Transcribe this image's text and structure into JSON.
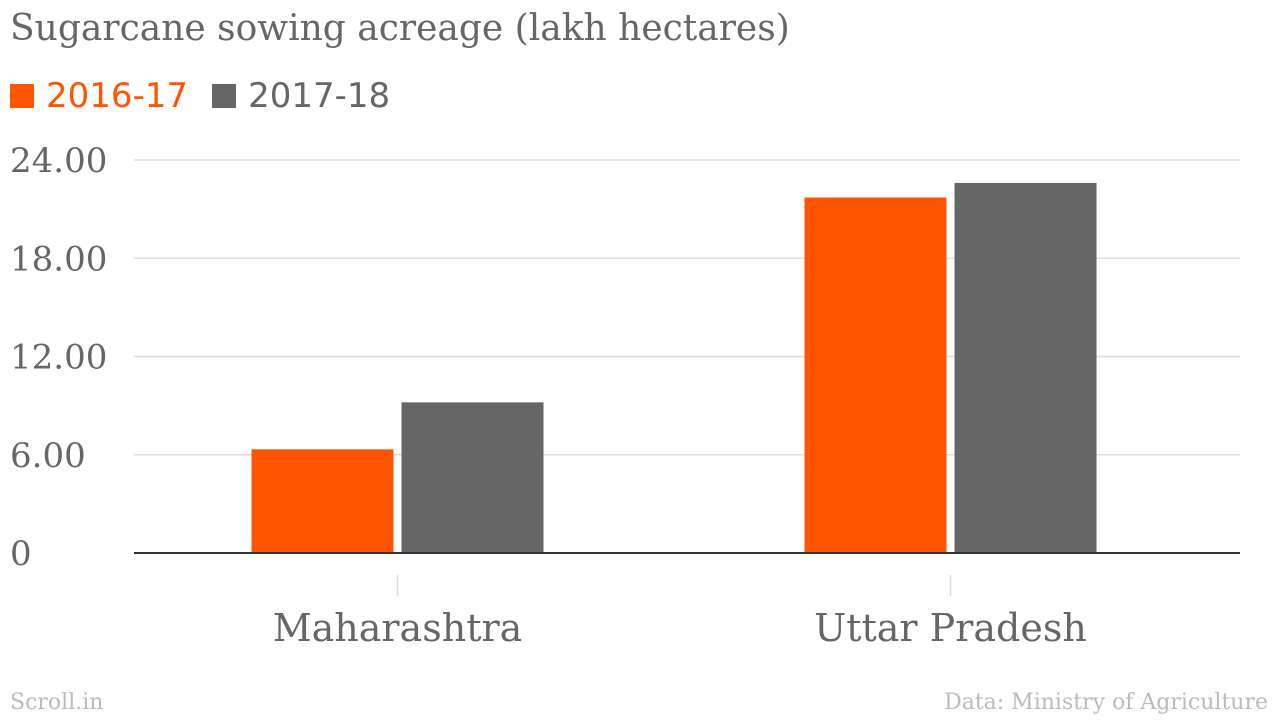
{
  "colors": {
    "series_2016_17": "#ff5500",
    "series_2017_18": "#666666",
    "text": "#666666",
    "grid": "#dddddd",
    "axis": "#333333",
    "footer": "#bbbbbb"
  },
  "footer": {
    "left": "Scroll.in",
    "right": "Data: Ministry of Agriculture"
  },
  "chart_data": {
    "type": "bar",
    "title": "Sugarcane sowing acreage (lakh hectares)",
    "xlabel": "",
    "ylabel": "",
    "categories": [
      "Maharashtra",
      "Uttar Pradesh"
    ],
    "series": [
      {
        "name": "2016-17",
        "values": [
          6.33,
          21.71
        ]
      },
      {
        "name": "2017-18",
        "values": [
          9.2,
          22.6
        ]
      }
    ],
    "ylim": [
      0,
      24
    ],
    "yticks": [
      0,
      6,
      12,
      18,
      24
    ],
    "ytick_labels": [
      "0",
      "6.00",
      "12.00",
      "18.00",
      "24.00"
    ],
    "grid": true,
    "legend_position": "top-left"
  }
}
